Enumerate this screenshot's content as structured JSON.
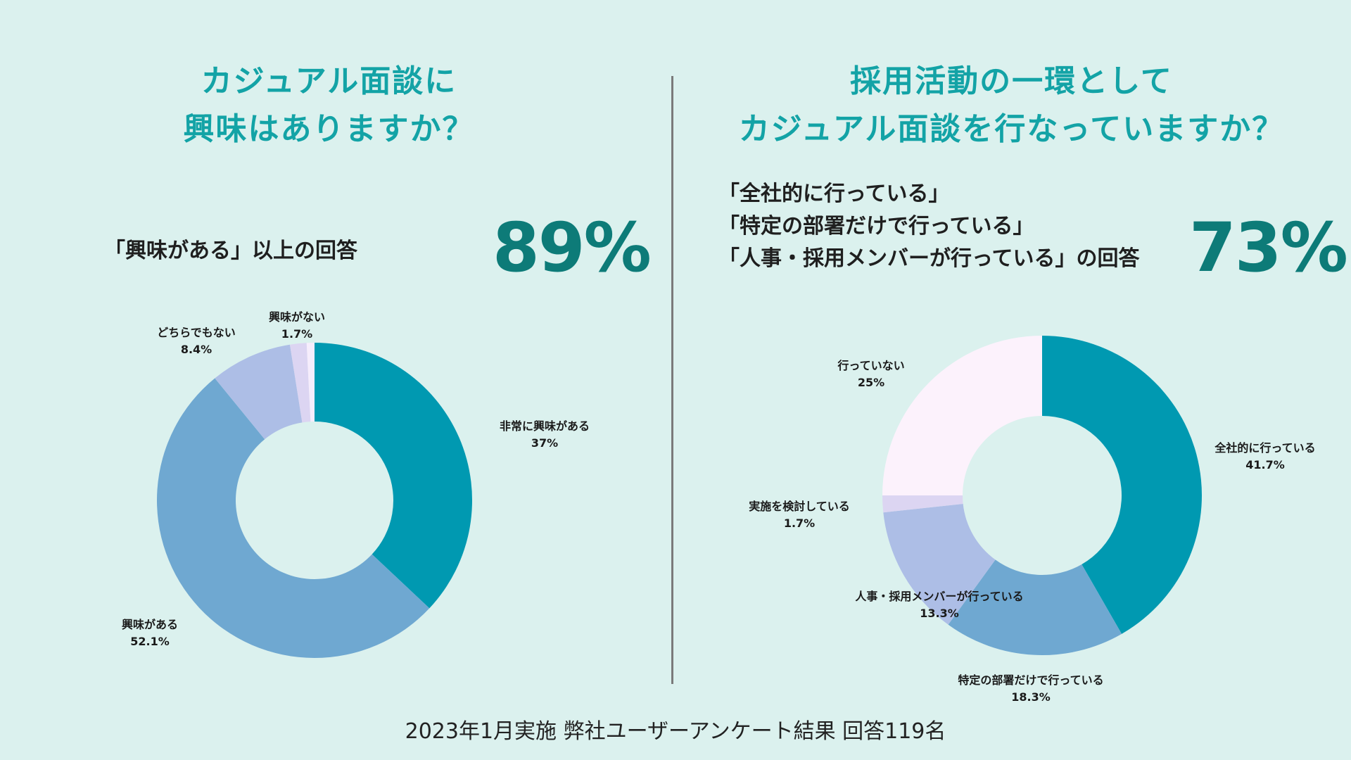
{
  "colors": {
    "background": "#dbf1ee",
    "title": "#13a3a6",
    "big_number": "#0d7b78",
    "divider": "#7a7a7a"
  },
  "left": {
    "title_lines": [
      "カジュアル面談に",
      "興味はありますか？"
    ],
    "summary_label": "「興味がある」以上の回答",
    "big_value": "89%"
  },
  "right": {
    "title_lines": [
      "採用活動の一環として",
      "カジュアル面談を行なっていますか？"
    ],
    "summary_lines": [
      "「全社的に行っている」",
      "「特定の部署だけで行っている」",
      "「人事・採用メンバーが行っている」の回答"
    ],
    "big_value": "73%"
  },
  "footer": "2023年1月実施 弊社ユーザーアンケート結果 回答119名",
  "chart_data": [
    {
      "type": "pie",
      "title": "カジュアル面談に興味はありますか？",
      "slices": [
        {
          "label": "非常に興味がある",
          "value": 37,
          "display": "37%",
          "color": "#0099b1"
        },
        {
          "label": "興味がある",
          "value": 52.1,
          "display": "52.1%",
          "color": "#6fa8d1"
        },
        {
          "label": "どちらでもない",
          "value": 8.4,
          "display": "8.4%",
          "color": "#adbee6"
        },
        {
          "label": "興味がない",
          "value": 1.7,
          "display": "1.7%",
          "color": "#dcd5f2"
        },
        {
          "label": "",
          "value": 0.8,
          "display": "",
          "color": "#f6edfc"
        }
      ]
    },
    {
      "type": "pie",
      "title": "採用活動の一環としてカジュアル面談を行なっていますか？",
      "slices": [
        {
          "label": "全社的に行っている",
          "value": 41.7,
          "display": "41.7%",
          "color": "#0099b1"
        },
        {
          "label": "特定の部署だけで行っている",
          "value": 18.3,
          "display": "18.3%",
          "color": "#6fa8d1"
        },
        {
          "label": "人事・採用メンバーが行っている",
          "value": 13.3,
          "display": "13.3%",
          "color": "#adbee6"
        },
        {
          "label": "実施を検討している",
          "value": 1.7,
          "display": "1.7%",
          "color": "#dcd5f2"
        },
        {
          "label": "行っていない",
          "value": 25,
          "display": "25%",
          "color": "#fcf2fc"
        }
      ]
    }
  ]
}
